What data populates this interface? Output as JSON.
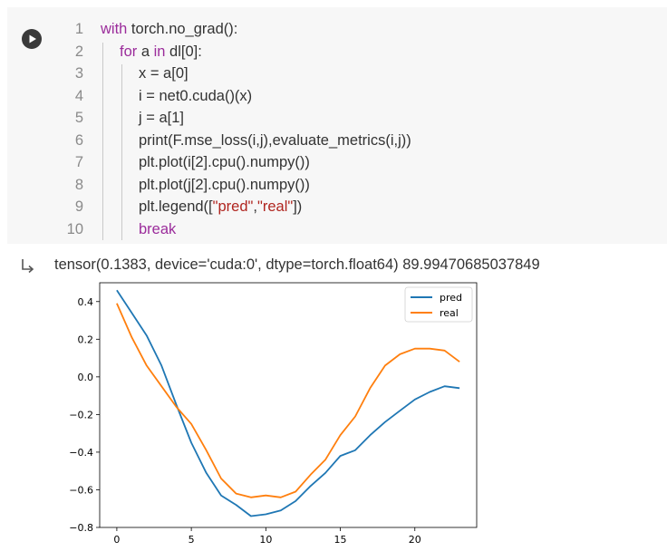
{
  "cell": {
    "run_icon": "play-icon",
    "lines": [
      {
        "n": "1",
        "indent": 0,
        "tokens": [
          {
            "t": "with",
            "k": "kw"
          },
          {
            "t": " torch.no_grad():",
            "k": "plain"
          }
        ]
      },
      {
        "n": "2",
        "indent": 1,
        "tokens": [
          {
            "t": "for",
            "k": "kw"
          },
          {
            "t": " a ",
            "k": "plain"
          },
          {
            "t": "in",
            "k": "kw"
          },
          {
            "t": " dl[0]:",
            "k": "plain"
          }
        ]
      },
      {
        "n": "3",
        "indent": 2,
        "tokens": [
          {
            "t": "x = a[0]",
            "k": "plain"
          }
        ]
      },
      {
        "n": "4",
        "indent": 2,
        "tokens": [
          {
            "t": "i = net0.cuda()(x)",
            "k": "plain"
          }
        ]
      },
      {
        "n": "5",
        "indent": 2,
        "tokens": [
          {
            "t": "j = a[1]",
            "k": "plain"
          }
        ]
      },
      {
        "n": "6",
        "indent": 2,
        "tokens": [
          {
            "t": "print(F.mse_loss(i,j),evaluate_metrics(i,j))",
            "k": "plain"
          }
        ]
      },
      {
        "n": "7",
        "indent": 2,
        "tokens": [
          {
            "t": "plt.plot(i[2].cpu().numpy())",
            "k": "plain"
          }
        ]
      },
      {
        "n": "8",
        "indent": 2,
        "tokens": [
          {
            "t": "plt.plot(j[2].cpu().numpy())",
            "k": "plain"
          }
        ]
      },
      {
        "n": "9",
        "indent": 2,
        "tokens": [
          {
            "t": "plt.legend([",
            "k": "plain"
          },
          {
            "t": "\"pred\"",
            "k": "str"
          },
          {
            "t": ",",
            "k": "plain"
          },
          {
            "t": "\"real\"",
            "k": "str"
          },
          {
            "t": "])",
            "k": "plain"
          }
        ]
      },
      {
        "n": "10",
        "indent": 2,
        "tokens": [
          {
            "t": "break",
            "k": "kw"
          }
        ]
      }
    ]
  },
  "output": {
    "icon": "output-arrow-icon",
    "text": "tensor(0.1383, device='cuda:0', dtype=torch.float64) 89.99470685037849"
  },
  "colors": {
    "pred": "#1f77b4",
    "real": "#ff7f0e",
    "keyword": "#9b2c9b",
    "string": "#b0251f"
  },
  "chart_data": {
    "type": "line",
    "x": [
      0,
      1,
      2,
      3,
      4,
      5,
      6,
      7,
      8,
      9,
      10,
      11,
      12,
      13,
      14,
      15,
      16,
      17,
      18,
      19,
      20,
      21,
      22,
      23
    ],
    "series": [
      {
        "name": "pred",
        "values": [
          0.46,
          0.34,
          0.22,
          0.06,
          -0.15,
          -0.35,
          -0.51,
          -0.63,
          -0.68,
          -0.74,
          -0.73,
          -0.71,
          -0.66,
          -0.58,
          -0.51,
          -0.42,
          -0.39,
          -0.31,
          -0.24,
          -0.18,
          -0.12,
          -0.08,
          -0.05,
          -0.06
        ]
      },
      {
        "name": "real",
        "values": [
          0.39,
          0.21,
          0.06,
          -0.05,
          -0.16,
          -0.25,
          -0.39,
          -0.54,
          -0.62,
          -0.64,
          -0.63,
          -0.64,
          -0.61,
          -0.52,
          -0.44,
          -0.31,
          -0.21,
          -0.06,
          0.06,
          0.12,
          0.15,
          0.15,
          0.14,
          0.08
        ]
      }
    ],
    "xticks": [
      "0",
      "5",
      "10",
      "15",
      "20"
    ],
    "yticks": [
      "0.4",
      "0.2",
      "0.0",
      "−0.2",
      "−0.4",
      "−0.6",
      "−0.8"
    ],
    "xlim": [
      -1.15,
      24.15
    ],
    "ylim": [
      -0.8,
      0.5
    ],
    "legend_position": "upper right"
  }
}
